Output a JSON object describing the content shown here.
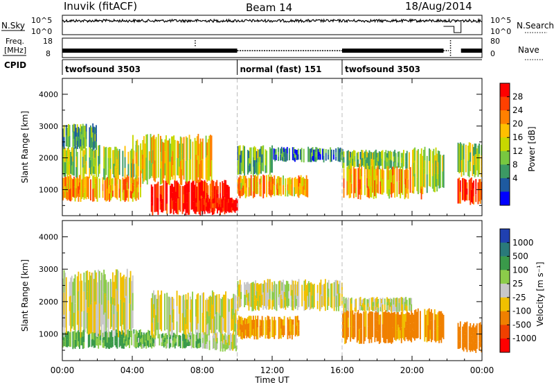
{
  "header": {
    "station": "Inuvik (fitACF)",
    "beam": "Beam 14",
    "date": "18/Aug/2014"
  },
  "top_panels": {
    "nsky_label": "N.Sky",
    "nsearch_label": "N.Search",
    "freq_label_line1": "Freq.",
    "freq_label_line2": "[MHz]",
    "nave_label": "Nave",
    "cpid_label": "CPID",
    "nsky_ticks": [
      "10^5",
      "10^0"
    ],
    "nsearch_ticks": [
      "10^5",
      "10^0"
    ],
    "freq_ticks": [
      "18",
      "8"
    ],
    "nave_ticks": [
      "80",
      "0"
    ],
    "cpid_segments": [
      {
        "name": "twofsound 3503",
        "start_hour": 0,
        "end_hour": 10
      },
      {
        "name": "normal (fast) 151",
        "start_hour": 10,
        "end_hour": 16
      },
      {
        "name": "twofsound 3503",
        "start_hour": 16,
        "end_hour": 24
      }
    ]
  },
  "colorbars": {
    "power": {
      "label": "Power [dB]",
      "tick_labels": [
        "28",
        "24",
        "20",
        "16",
        "12",
        "8",
        "4"
      ],
      "colors": [
        "#ff0000",
        "#ff4000",
        "#ff8000",
        "#ffc000",
        "#c8d800",
        "#78c840",
        "#3c9a64",
        "#1e5aa0",
        "#0000ff"
      ]
    },
    "velocity": {
      "label": "Velocity [m s⁻¹]",
      "tick_labels": [
        "1000",
        "500",
        "100",
        "25",
        "-25",
        "-100",
        "-500",
        "-1000"
      ],
      "colors": [
        "#2040b0",
        "#2a7a7a",
        "#3a9a4a",
        "#8ccc4a",
        "#c8c8c8",
        "#f0c000",
        "#f08000",
        "#f04000",
        "#ff0000"
      ]
    }
  },
  "chart_data": [
    {
      "type": "heatmap",
      "panel": "power",
      "ylabel": "Slant Range [km]",
      "y_ticks": [
        1000,
        2000,
        3000,
        4000
      ],
      "ylim": [
        180,
        4500
      ],
      "xlim_hours": [
        0,
        24
      ],
      "z_unit": "dB",
      "zlim": [
        0,
        30
      ],
      "dashed_lines_hours": [
        10,
        16
      ],
      "echo_regions": [
        {
          "t0": 0.0,
          "t1": 4.5,
          "r0": 700,
          "r1": 1400,
          "value": 20
        },
        {
          "t0": 0.0,
          "t1": 5.0,
          "r0": 1400,
          "r1": 2300,
          "value": 14
        },
        {
          "t0": 0.0,
          "t1": 2.0,
          "r0": 2300,
          "r1": 3000,
          "value": 10
        },
        {
          "t0": 4.0,
          "t1": 8.5,
          "r0": 1300,
          "r1": 2600,
          "value": 17
        },
        {
          "t0": 5.0,
          "t1": 9.5,
          "r0": 300,
          "r1": 1200,
          "value": 28
        },
        {
          "t0": 7.5,
          "t1": 10.0,
          "r0": 300,
          "r1": 700,
          "value": 29
        },
        {
          "t0": 10.0,
          "t1": 12.0,
          "r0": 1500,
          "r1": 2300,
          "value": 11
        },
        {
          "t0": 10.0,
          "t1": 14.0,
          "r0": 800,
          "r1": 1400,
          "value": 19
        },
        {
          "t0": 12.0,
          "t1": 16.0,
          "r0": 1900,
          "r1": 2300,
          "value": 7
        },
        {
          "t0": 16.0,
          "t1": 20.5,
          "r0": 800,
          "r1": 1700,
          "value": 19
        },
        {
          "t0": 16.0,
          "t1": 20.0,
          "r0": 1700,
          "r1": 2200,
          "value": 12
        },
        {
          "t0": 20.0,
          "t1": 21.8,
          "r0": 1000,
          "r1": 2200,
          "value": 14
        },
        {
          "t0": 22.6,
          "t1": 24.0,
          "r0": 600,
          "r1": 1300,
          "value": 26
        },
        {
          "t0": 22.6,
          "t1": 24.0,
          "r0": 1500,
          "r1": 2400,
          "value": 13
        }
      ]
    },
    {
      "type": "heatmap",
      "panel": "velocity",
      "ylabel": "Slant Range [km]",
      "xlabel": "Time UT",
      "x_tick_labels": [
        "00:00",
        "04:00",
        "08:00",
        "12:00",
        "16:00",
        "20:00",
        "00:00"
      ],
      "y_ticks": [
        1000,
        2000,
        3000,
        4000
      ],
      "ylim": [
        180,
        4500
      ],
      "xlim_hours": [
        0,
        24
      ],
      "z_unit": "m s^-1",
      "dashed_lines_hours": [
        10,
        16
      ],
      "echo_regions": [
        {
          "t0": 0.0,
          "t1": 5.0,
          "r0": 600,
          "r1": 1100,
          "value": 110
        },
        {
          "t0": 0.0,
          "t1": 4.0,
          "r0": 1100,
          "r1": 2800,
          "value": 0
        },
        {
          "t0": 4.0,
          "t1": 8.0,
          "r0": 600,
          "r1": 1000,
          "value": 90
        },
        {
          "t0": 5.0,
          "t1": 10.0,
          "r0": 1000,
          "r1": 2200,
          "value": 0
        },
        {
          "t0": 8.0,
          "t1": 10.0,
          "r0": 500,
          "r1": 1000,
          "value": 20
        },
        {
          "t0": 10.0,
          "t1": 13.5,
          "r0": 900,
          "r1": 1500,
          "value": -110
        },
        {
          "t0": 10.0,
          "t1": 16.0,
          "r0": 1800,
          "r1": 2600,
          "value": 0
        },
        {
          "t0": 16.0,
          "t1": 21.8,
          "r0": 800,
          "r1": 1700,
          "value": -150
        },
        {
          "t0": 16.0,
          "t1": 20.0,
          "r0": 1700,
          "r1": 2100,
          "value": 0
        },
        {
          "t0": 22.6,
          "t1": 24.0,
          "r0": 500,
          "r1": 1300,
          "value": -200
        }
      ]
    }
  ]
}
